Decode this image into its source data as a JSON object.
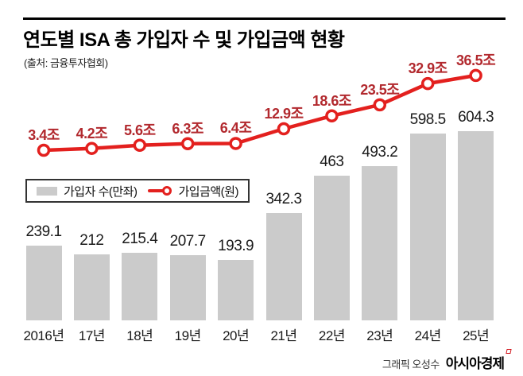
{
  "header": {
    "title": "연도별 ISA 총 가입자 수 및 가입금액 현황",
    "source": "(출처: 금융투자협회)"
  },
  "legend": {
    "bar_label": "가입자 수(만좌)",
    "line_label": "가입금액(원)"
  },
  "footer": {
    "credit": "그래픽 오성수",
    "brand": "아시아경제"
  },
  "colors": {
    "bar": "#cbcbcb",
    "line": "#e3201e",
    "line_label": "#b2292e",
    "text": "#1a1a1a"
  },
  "chart_data": {
    "type": "bar",
    "title": "연도별 ISA 총 가입자 수 및 가입금액 현황",
    "categories": [
      "2016년",
      "17년",
      "18년",
      "19년",
      "20년",
      "21년",
      "22년",
      "23년",
      "24년",
      "25년"
    ],
    "series": [
      {
        "name": "가입자 수(만좌)",
        "type": "bar",
        "values": [
          239.1,
          212,
          215.4,
          207.7,
          193.9,
          342.3,
          463,
          493.2,
          598.5,
          604.3
        ]
      },
      {
        "name": "가입금액(원)",
        "type": "line",
        "unit": "조",
        "values": [
          3.4,
          4.2,
          5.6,
          6.3,
          6.4,
          12.9,
          18.6,
          23.5,
          32.9,
          36.5
        ],
        "labels": [
          "3.4조",
          "4.2조",
          "5.6조",
          "6.3조",
          "6.4조",
          "12.9조",
          "18.6조",
          "23.5조",
          "32.9조",
          "36.5조"
        ]
      }
    ],
    "grid": false,
    "legend_position": "middle-left",
    "value_labels": true
  }
}
